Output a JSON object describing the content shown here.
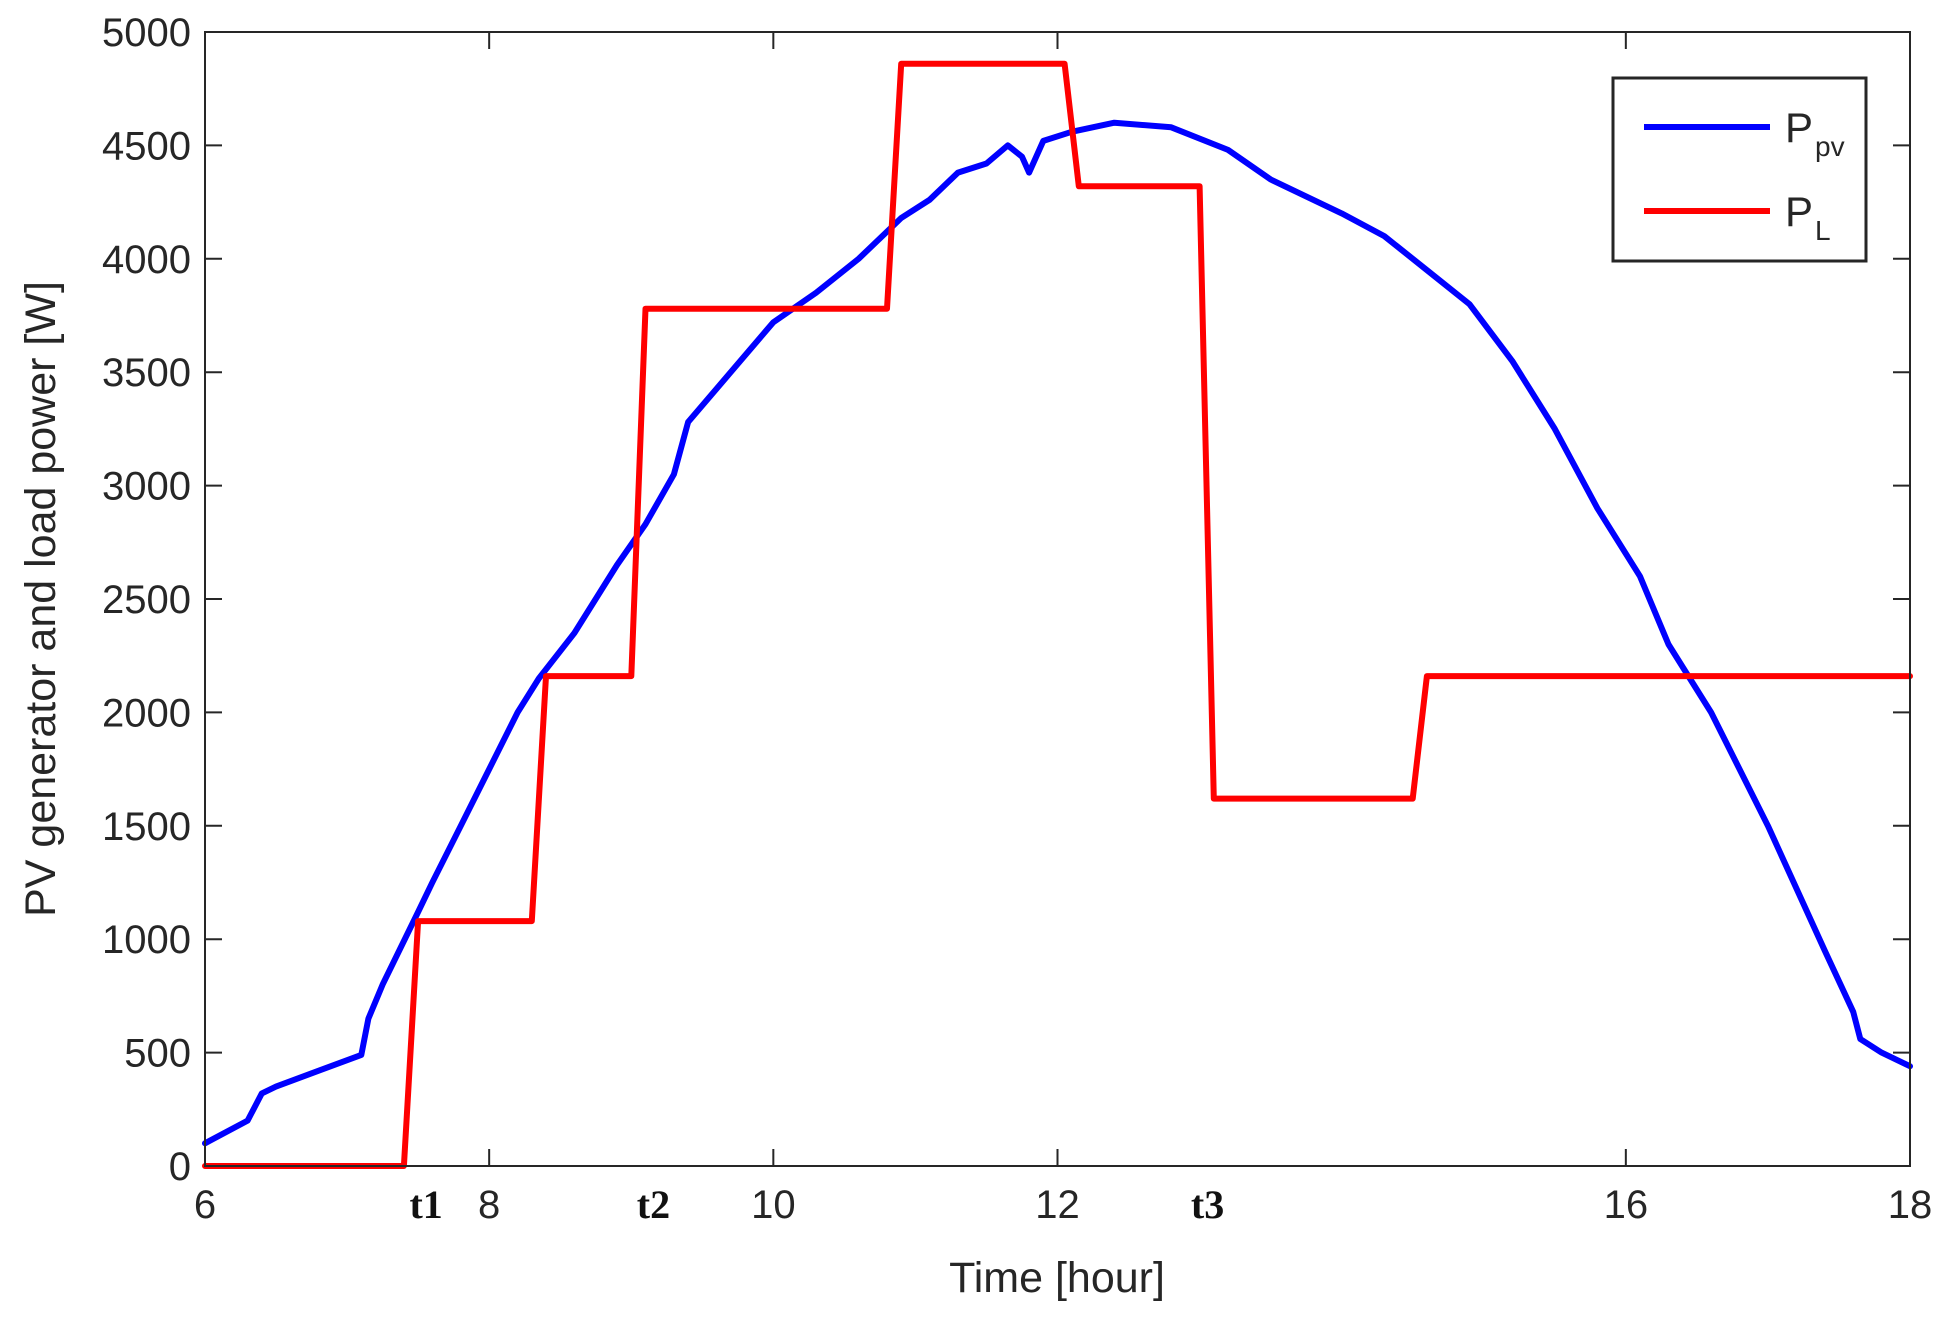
{
  "chart_data": {
    "type": "line",
    "title": "",
    "xlabel": "Time [hour]",
    "ylabel": "PV generator and load power [W]",
    "xlim": [
      6,
      18
    ],
    "ylim": [
      0,
      5000
    ],
    "xticks": [
      6,
      8,
      10,
      12,
      16,
      18
    ],
    "yticks": [
      0,
      500,
      1000,
      1500,
      2000,
      2500,
      3000,
      3500,
      4000,
      4500,
      5000
    ],
    "grid": false,
    "legend": {
      "placement": "top-right",
      "entries": [
        {
          "main": "P",
          "sub": "pv",
          "color": "#0000ff"
        },
        {
          "main": "P",
          "sub": "L",
          "color": "#ff0000"
        }
      ]
    },
    "markers": [
      {
        "label": "t1",
        "x": 7.5
      },
      {
        "label": "t2",
        "x": 9.1
      },
      {
        "label": "t3",
        "x": 13.0
      }
    ],
    "series": [
      {
        "name": "P_pv",
        "color": "#0000ff",
        "x": [
          6.0,
          6.3,
          6.4,
          6.5,
          6.8,
          7.1,
          7.15,
          7.25,
          7.5,
          7.6,
          7.8,
          8.0,
          8.2,
          8.35,
          8.6,
          8.9,
          9.1,
          9.3,
          9.4,
          9.7,
          10.0,
          10.3,
          10.6,
          10.9,
          11.1,
          11.3,
          11.5,
          11.65,
          11.75,
          11.8,
          11.9,
          12.1,
          12.4,
          12.8,
          13.2,
          13.5,
          14.0,
          14.3,
          14.6,
          14.9,
          15.2,
          15.5,
          15.8,
          16.1,
          16.3,
          16.6,
          17.0,
          17.4,
          17.6,
          17.65,
          17.8,
          18.0
        ],
        "y": [
          100,
          200,
          320,
          350,
          420,
          490,
          650,
          800,
          1120,
          1250,
          1500,
          1750,
          2000,
          2150,
          2350,
          2650,
          2830,
          3050,
          3280,
          3500,
          3720,
          3850,
          4000,
          4180,
          4260,
          4380,
          4420,
          4500,
          4450,
          4380,
          4520,
          4560,
          4600,
          4580,
          4480,
          4350,
          4200,
          4100,
          3950,
          3800,
          3550,
          3250,
          2900,
          2600,
          2300,
          2000,
          1500,
          950,
          680,
          560,
          500,
          440
        ]
      },
      {
        "name": "P_L",
        "color": "#ff0000",
        "x": [
          6.0,
          7.4,
          7.5,
          8.3,
          8.4,
          9.0,
          9.1,
          10.8,
          10.9,
          12.05,
          12.15,
          13.0,
          13.1,
          14.5,
          14.6,
          18.0
        ],
        "y": [
          0,
          0,
          1080,
          1080,
          2160,
          2160,
          3780,
          3780,
          4860,
          4860,
          4320,
          4320,
          1620,
          1620,
          2160,
          2160
        ]
      }
    ]
  }
}
